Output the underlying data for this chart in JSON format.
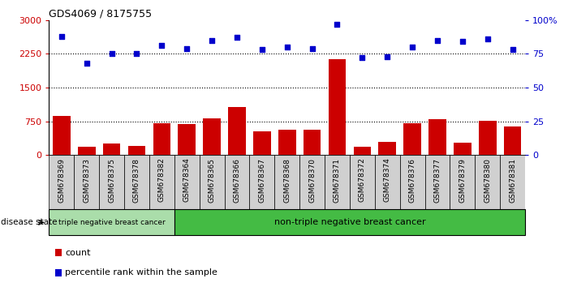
{
  "title": "GDS4069 / 8175755",
  "samples": [
    "GSM678369",
    "GSM678373",
    "GSM678375",
    "GSM678378",
    "GSM678382",
    "GSM678364",
    "GSM678365",
    "GSM678366",
    "GSM678367",
    "GSM678368",
    "GSM678370",
    "GSM678371",
    "GSM678372",
    "GSM678374",
    "GSM678376",
    "GSM678377",
    "GSM678379",
    "GSM678380",
    "GSM678381"
  ],
  "counts": [
    870,
    190,
    250,
    210,
    710,
    680,
    820,
    1060,
    530,
    560,
    560,
    2130,
    180,
    290,
    710,
    800,
    270,
    760,
    640
  ],
  "percentiles": [
    88,
    68,
    75,
    75,
    81,
    79,
    85,
    87,
    78,
    80,
    79,
    97,
    72,
    73,
    80,
    85,
    84,
    86,
    78
  ],
  "group1_count": 5,
  "group1_label": "triple negative breast cancer",
  "group2_label": "non-triple negative breast cancer",
  "ylim_left": [
    0,
    3000
  ],
  "ylim_right": [
    0,
    100
  ],
  "yticks_left": [
    0,
    750,
    1500,
    2250,
    3000
  ],
  "yticks_right": [
    0,
    25,
    50,
    75,
    100
  ],
  "bar_color": "#cc0000",
  "dot_color": "#0000cc",
  "bg_color_plot": "#ffffff",
  "cell_bg": "#d0d0d0",
  "bg_color_group1": "#aaddaa",
  "bg_color_group2": "#44bb44",
  "legend_count_label": "count",
  "legend_pct_label": "percentile rank within the sample",
  "disease_state_label": "disease state"
}
